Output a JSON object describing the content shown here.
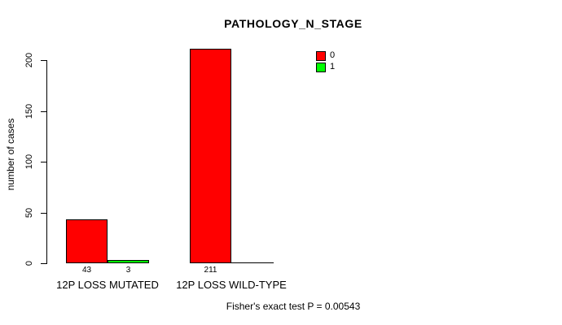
{
  "title": "PATHOLOGY_N_STAGE",
  "footer": "Fisher's exact test P = 0.00543",
  "legend": {
    "items": [
      {
        "label": "0",
        "color": "#FF0000"
      },
      {
        "label": "1",
        "color": "#00FF00"
      }
    ]
  },
  "chart_data": {
    "type": "bar",
    "title": "PATHOLOGY_N_STAGE",
    "xlabel": "",
    "ylabel": "number of cases",
    "categories": [
      "12P LOSS MUTATED",
      "12P LOSS WILD-TYPE"
    ],
    "series": [
      {
        "name": "0",
        "color": "#FF0000",
        "values": [
          43,
          211
        ]
      },
      {
        "name": "1",
        "color": "#00FF00",
        "values": [
          3,
          0
        ]
      }
    ],
    "bar_value_labels": [
      [
        "43",
        "3"
      ],
      [
        "211",
        ""
      ]
    ],
    "yticks": [
      0,
      50,
      100,
      150,
      200
    ],
    "ylim": [
      0,
      211
    ],
    "grid": false,
    "legend_position": "top-right",
    "annotation": "Fisher's exact test P = 0.00543"
  }
}
